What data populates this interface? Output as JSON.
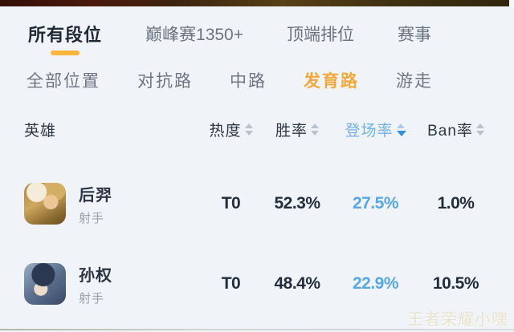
{
  "rank_tabs": {
    "items": [
      {
        "label": "所有段位",
        "active": true
      },
      {
        "label": "巅峰赛1350+",
        "active": false
      },
      {
        "label": "顶端排位",
        "active": false
      },
      {
        "label": "赛事",
        "active": false
      }
    ]
  },
  "lane_tabs": {
    "items": [
      {
        "label": "全部位置",
        "active": false
      },
      {
        "label": "对抗路",
        "active": false
      },
      {
        "label": "中路",
        "active": false
      },
      {
        "label": "发育路",
        "active": true
      },
      {
        "label": "游走",
        "active": false
      }
    ]
  },
  "table": {
    "hero_column_label": "英雄",
    "columns": [
      {
        "label": "热度",
        "sorted": false
      },
      {
        "label": "胜率",
        "sorted": false
      },
      {
        "label": "登场率",
        "sorted": true,
        "sort_direction": "desc"
      },
      {
        "label": "Ban率",
        "sorted": false
      }
    ],
    "rows": [
      {
        "name": "后羿",
        "role": "射手",
        "tier": "T0",
        "win_rate": "52.3%",
        "pick_rate": "27.5%",
        "ban_rate": "1.0%"
      },
      {
        "name": "孙权",
        "role": "射手",
        "tier": "T0",
        "win_rate": "48.4%",
        "pick_rate": "22.9%",
        "ban_rate": "10.5%"
      }
    ]
  },
  "watermark": "王者荣耀小嘿",
  "colors": {
    "background": "#f0f4f9",
    "accent_yellow": "#fbb43c",
    "accent_orange": "#f2a93b",
    "accent_blue": "#57a7e6",
    "sort_active_blue": "#2f8fe0",
    "top_strip_brown": "#3c2410"
  }
}
